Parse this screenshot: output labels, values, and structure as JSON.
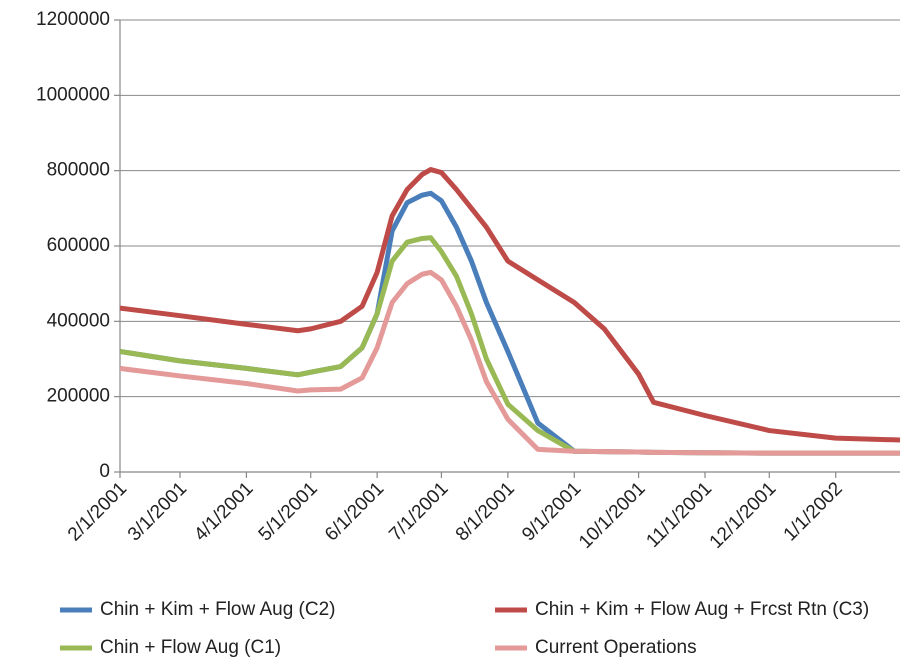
{
  "chart_data": {
    "type": "line",
    "x": [
      "2/1/2001",
      "3/1/2001",
      "4/1/2001",
      "4/25/2001",
      "5/1/2001",
      "5/15/2001",
      "5/25/2001",
      "6/1/2001",
      "6/8/2001",
      "6/15/2001",
      "6/22/2001",
      "6/26/2001",
      "7/1/2001",
      "7/8/2001",
      "7/15/2001",
      "7/22/2001",
      "8/1/2001",
      "8/15/2001",
      "9/1/2001",
      "9/15/2001",
      "10/1/2001",
      "10/8/2001",
      "11/1/2001",
      "12/1/2001",
      "1/1/2002",
      "1/31/2002"
    ],
    "series": [
      {
        "name": "Chin + Kim + Flow Aug (C2)",
        "color": "#4a7ebb",
        "values": [
          320000,
          295000,
          275000,
          258000,
          265000,
          280000,
          330000,
          420000,
          640000,
          715000,
          735000,
          740000,
          720000,
          650000,
          560000,
          450000,
          320000,
          130000,
          55000,
          54000,
          53000,
          52000,
          51000,
          50000,
          50000,
          50000
        ]
      },
      {
        "name": "Chin + Kim + Flow Aug + Frcst Rtn (C3)",
        "color": "#be4b48",
        "values": [
          435000,
          415000,
          392000,
          375000,
          380000,
          400000,
          440000,
          530000,
          680000,
          750000,
          790000,
          803000,
          795000,
          750000,
          700000,
          650000,
          560000,
          510000,
          450000,
          380000,
          260000,
          185000,
          150000,
          110000,
          90000,
          85000
        ]
      },
      {
        "name": "Chin + Flow Aug (C1)",
        "color": "#98b954",
        "values": [
          320000,
          295000,
          275000,
          258000,
          265000,
          280000,
          330000,
          420000,
          560000,
          610000,
          620000,
          622000,
          585000,
          520000,
          420000,
          300000,
          180000,
          110000,
          55000,
          54000,
          53000,
          52000,
          51000,
          50000,
          50000,
          50000
        ]
      },
      {
        "name": "Current Operations",
        "color": "#e39a98",
        "values": [
          275000,
          255000,
          235000,
          215000,
          218000,
          220000,
          250000,
          330000,
          450000,
          500000,
          525000,
          530000,
          510000,
          440000,
          350000,
          240000,
          140000,
          60000,
          55000,
          54000,
          53000,
          52000,
          51000,
          50000,
          50000,
          50000
        ]
      }
    ],
    "xlim": [
      "2/1/2001",
      "1/31/2002"
    ],
    "xticks": [
      "2/1/2001",
      "3/1/2001",
      "4/1/2001",
      "5/1/2001",
      "6/1/2001",
      "7/1/2001",
      "8/1/2001",
      "9/1/2001",
      "10/1/2001",
      "11/1/2001",
      "12/1/2001",
      "1/1/2002"
    ],
    "ylim": [
      0,
      1200000
    ],
    "yticks": [
      0,
      200000,
      400000,
      600000,
      800000,
      1000000,
      1200000
    ],
    "grid": true,
    "legend": "bottom"
  }
}
